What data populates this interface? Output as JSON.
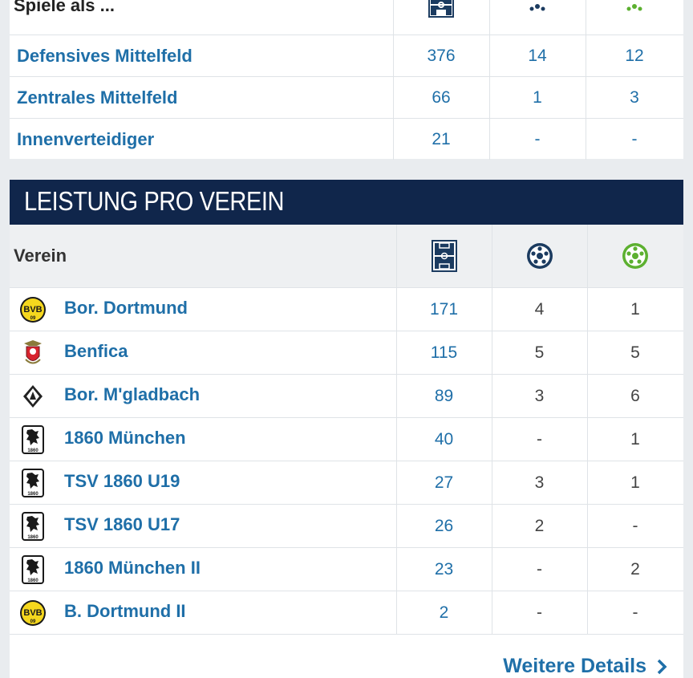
{
  "positions": {
    "header": "Spiele als ...",
    "rows": [
      {
        "name": "Defensives Mittelfeld",
        "apps": "376",
        "goals": "14",
        "assists": "12"
      },
      {
        "name": "Zentrales Mittelfeld",
        "apps": "66",
        "goals": "1",
        "assists": "3"
      },
      {
        "name": "Innenverteidiger",
        "apps": "21",
        "goals": "-",
        "assists": "-"
      }
    ]
  },
  "clubs": {
    "section_title": "LEISTUNG PRO VEREIN",
    "column_label": "Verein",
    "rows": [
      {
        "name": "Bor. Dortmund",
        "logo": "bvb-logo",
        "apps": "171",
        "goals": "4",
        "assists": "1"
      },
      {
        "name": "Benfica",
        "logo": "benfica-logo",
        "apps": "115",
        "goals": "5",
        "assists": "5"
      },
      {
        "name": "Bor. M'gladbach",
        "logo": "gladbach-logo",
        "apps": "89",
        "goals": "3",
        "assists": "6"
      },
      {
        "name": "1860 München",
        "logo": "tsv1860-logo",
        "apps": "40",
        "goals": "-",
        "assists": "1"
      },
      {
        "name": "TSV 1860 U19",
        "logo": "tsv1860-logo",
        "apps": "27",
        "goals": "3",
        "assists": "1"
      },
      {
        "name": "TSV 1860 U17",
        "logo": "tsv1860-logo",
        "apps": "26",
        "goals": "2",
        "assists": "-"
      },
      {
        "name": "1860 München II",
        "logo": "tsv1860-logo",
        "apps": "23",
        "goals": "-",
        "assists": "2"
      },
      {
        "name": "B. Dortmund II",
        "logo": "bvb-logo",
        "apps": "2",
        "goals": "-",
        "assists": "-"
      }
    ],
    "more_link": "Weitere Details"
  },
  "icons": {
    "appearances": "pitch-icon",
    "goals": "ball-icon",
    "assists": "assist-ball-icon"
  },
  "colors": {
    "link": "#1f6fa8",
    "banner": "#10264b",
    "assist_green": "#5cb030",
    "bvb_yellow": "#f5d71e",
    "benfica_red": "#d8242f"
  }
}
